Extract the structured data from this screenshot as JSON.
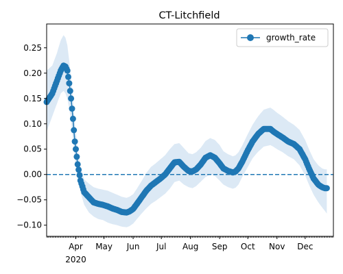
{
  "chart_data": {
    "type": "line",
    "title": "CT-Litchfield",
    "xlabel": "",
    "ylabel": "",
    "x_axis": {
      "kind": "date",
      "range": [
        "2020-03-01",
        "2020-12-31"
      ],
      "tick_labels": [
        "Apr",
        "May",
        "Jun",
        "Jul",
        "Aug",
        "Sep",
        "Oct",
        "Nov",
        "Dec"
      ],
      "tick_dates": [
        "2020-04-01",
        "2020-05-01",
        "2020-06-01",
        "2020-07-01",
        "2020-08-01",
        "2020-09-01",
        "2020-10-01",
        "2020-11-01",
        "2020-12-01"
      ],
      "year_label": "2020"
    },
    "y_axis": {
      "range": [
        -0.122,
        0.297
      ],
      "ticks": [
        -0.1,
        -0.05,
        0.0,
        0.05,
        0.1,
        0.15,
        0.2,
        0.25
      ],
      "tick_labels": [
        "−0.10",
        "−0.05",
        "0.00",
        "0.05",
        "0.10",
        "0.15",
        "0.20",
        "0.25"
      ]
    },
    "reference_line": {
      "y": 0,
      "style": "dashed"
    },
    "legend": {
      "position": "top-right",
      "entries": [
        "growth_rate"
      ]
    },
    "grid": false,
    "series": [
      {
        "name": "growth_rate",
        "color": "#1f77b4",
        "band_color": "#dce9f5",
        "marker": "circle",
        "x": [
          "2020-03-01",
          "2020-03-07",
          "2020-03-12",
          "2020-03-16",
          "2020-03-19",
          "2020-03-21",
          "2020-03-23",
          "2020-03-25",
          "2020-03-27",
          "2020-03-29",
          "2020-03-31",
          "2020-04-03",
          "2020-04-06",
          "2020-04-10",
          "2020-04-15",
          "2020-04-20",
          "2020-04-25",
          "2020-04-30",
          "2020-05-05",
          "2020-05-10",
          "2020-05-15",
          "2020-05-20",
          "2020-05-25",
          "2020-05-28",
          "2020-06-01",
          "2020-06-05",
          "2020-06-10",
          "2020-06-15",
          "2020-06-20",
          "2020-06-25",
          "2020-06-30",
          "2020-07-05",
          "2020-07-10",
          "2020-07-15",
          "2020-07-20",
          "2020-07-25",
          "2020-07-30",
          "2020-08-03",
          "2020-08-07",
          "2020-08-12",
          "2020-08-17",
          "2020-08-22",
          "2020-08-27",
          "2020-09-01",
          "2020-09-05",
          "2020-09-10",
          "2020-09-15",
          "2020-09-18",
          "2020-09-21",
          "2020-09-25",
          "2020-10-01",
          "2020-10-06",
          "2020-10-12",
          "2020-10-18",
          "2020-10-25",
          "2020-10-28",
          "2020-11-01",
          "2020-11-07",
          "2020-11-13",
          "2020-11-19",
          "2020-11-25",
          "2020-12-01",
          "2020-12-05",
          "2020-12-10",
          "2020-12-15",
          "2020-12-19",
          "2020-12-22",
          "2020-12-24"
        ],
        "values": [
          0.143,
          0.16,
          0.185,
          0.205,
          0.215,
          0.213,
          0.205,
          0.18,
          0.15,
          0.11,
          0.065,
          0.02,
          -0.012,
          -0.035,
          -0.045,
          -0.055,
          -0.058,
          -0.06,
          -0.063,
          -0.067,
          -0.07,
          -0.074,
          -0.075,
          -0.073,
          -0.068,
          -0.058,
          -0.045,
          -0.032,
          -0.022,
          -0.015,
          -0.008,
          0.0,
          0.012,
          0.024,
          0.025,
          0.015,
          0.007,
          0.006,
          0.01,
          0.02,
          0.033,
          0.038,
          0.033,
          0.022,
          0.012,
          0.007,
          0.004,
          0.006,
          0.012,
          0.025,
          0.048,
          0.065,
          0.08,
          0.09,
          0.09,
          0.085,
          0.08,
          0.073,
          0.065,
          0.06,
          0.05,
          0.03,
          0.012,
          -0.008,
          -0.02,
          -0.025,
          -0.027,
          -0.027
        ],
        "band_lower": [
          0.085,
          0.115,
          0.14,
          0.16,
          0.165,
          0.16,
          0.15,
          0.13,
          0.105,
          0.07,
          0.03,
          -0.01,
          -0.035,
          -0.06,
          -0.075,
          -0.083,
          -0.088,
          -0.09,
          -0.095,
          -0.098,
          -0.1,
          -0.103,
          -0.104,
          -0.102,
          -0.097,
          -0.088,
          -0.077,
          -0.067,
          -0.058,
          -0.052,
          -0.045,
          -0.038,
          -0.028,
          -0.015,
          -0.012,
          -0.02,
          -0.025,
          -0.027,
          -0.023,
          -0.014,
          -0.005,
          0.0,
          -0.003,
          -0.012,
          -0.02,
          -0.025,
          -0.028,
          -0.026,
          -0.02,
          -0.005,
          0.015,
          0.032,
          0.045,
          0.055,
          0.058,
          0.055,
          0.05,
          0.044,
          0.036,
          0.03,
          0.018,
          -0.002,
          -0.02,
          -0.04,
          -0.055,
          -0.065,
          -0.072,
          -0.077
        ],
        "band_upper": [
          0.205,
          0.215,
          0.24,
          0.265,
          0.275,
          0.27,
          0.255,
          0.225,
          0.19,
          0.15,
          0.1,
          0.05,
          0.015,
          -0.01,
          -0.018,
          -0.025,
          -0.028,
          -0.03,
          -0.032,
          -0.036,
          -0.04,
          -0.044,
          -0.046,
          -0.044,
          -0.039,
          -0.028,
          -0.013,
          0.003,
          0.015,
          0.022,
          0.03,
          0.038,
          0.05,
          0.06,
          0.062,
          0.052,
          0.042,
          0.04,
          0.044,
          0.053,
          0.066,
          0.072,
          0.068,
          0.058,
          0.046,
          0.04,
          0.036,
          0.038,
          0.044,
          0.057,
          0.08,
          0.098,
          0.115,
          0.128,
          0.132,
          0.128,
          0.122,
          0.114,
          0.105,
          0.098,
          0.088,
          0.068,
          0.05,
          0.03,
          0.018,
          0.012,
          0.01,
          0.01
        ]
      }
    ]
  }
}
